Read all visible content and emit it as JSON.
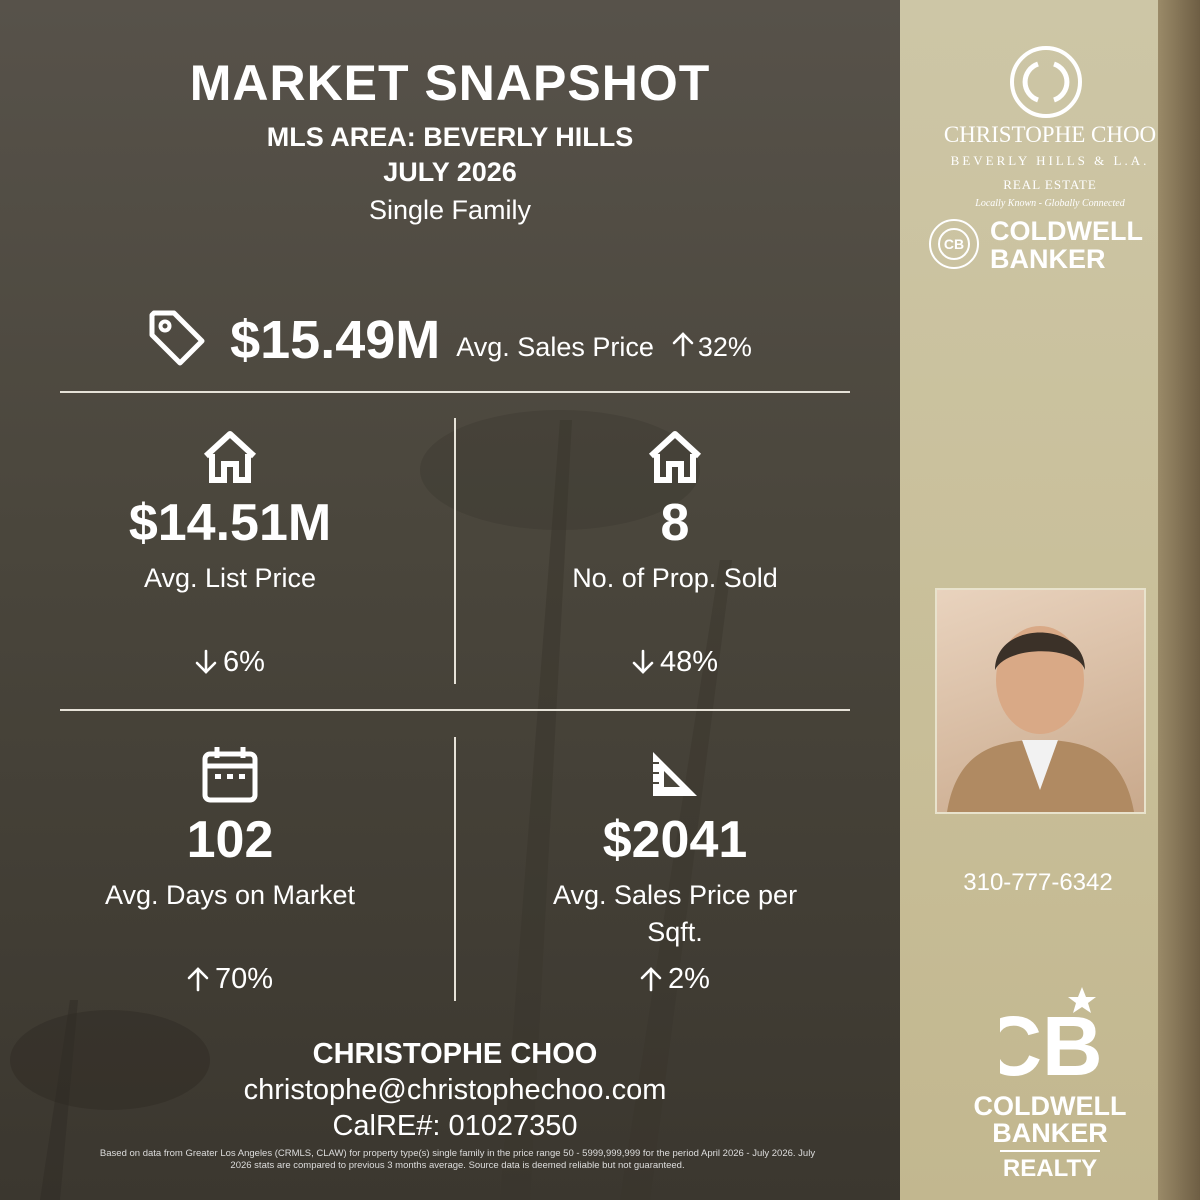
{
  "header": {
    "title": "MARKET SNAPSHOT",
    "area": "MLS AREA: BEVERLY HILLS",
    "period": "JULY 2026",
    "property_type": "Single Family"
  },
  "headline": {
    "icon": "tag",
    "value": "$15.49M",
    "label": "Avg. Sales Price",
    "change": "32%",
    "direction": "up"
  },
  "stats": [
    {
      "icon": "house",
      "value": "$14.51M",
      "label": "Avg. List Price",
      "change": "6%",
      "direction": "down"
    },
    {
      "icon": "house",
      "value": "8",
      "label": "No. of Prop. Sold",
      "change": "48%",
      "direction": "down"
    },
    {
      "icon": "calendar",
      "value": "102",
      "label": "Avg. Days on Market",
      "change": "70%",
      "direction": "up"
    },
    {
      "icon": "ruler",
      "value": "$2041",
      "label": "Avg. Sales Price per Sqft.",
      "change": "2%",
      "direction": "up"
    }
  ],
  "contact": {
    "name": "CHRISTOPHE CHOO",
    "email": "christophe@christophechoo.com",
    "license": "CalRE#: 01027350"
  },
  "disclaimer": "Based on data from Greater Los Angeles (CRMLS, CLAW) for property type(s) single family in the price range 50 - 5999,999,999 for the period April 2026 - July 2026. July 2026 stats are compared to previous 3 months average. Source data is deemed reliable but not guaranteed.",
  "sidebar": {
    "brand_name": "CHRISTOPHE CHOO",
    "brand_region": "BEVERLY HILLS & L.A.",
    "brand_line": "REAL ESTATE",
    "tagline": "Locally Known - Globally Connected",
    "partner_top": [
      "COLDWELL",
      "BANKER"
    ],
    "phone": "310-777-6342",
    "partner_bottom": [
      "COLDWELL",
      "BANKER"
    ],
    "partner_division": "REALTY"
  }
}
